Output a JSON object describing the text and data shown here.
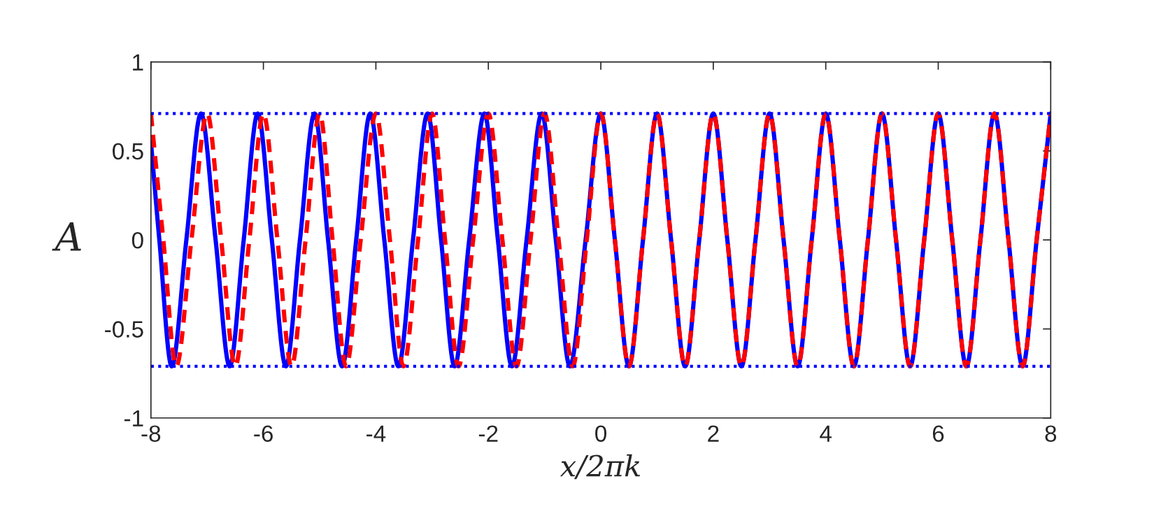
{
  "chart_data": {
    "type": "line",
    "xlabel": "x/2πk",
    "ylabel": "A",
    "xlim": [
      -8,
      8
    ],
    "xticks": [
      -8,
      -6,
      -4,
      -2,
      0,
      2,
      4,
      6,
      8
    ],
    "ylim": [
      -1,
      1
    ],
    "yticks": [
      -1,
      -0.5,
      0,
      0.5,
      1
    ],
    "grid": false,
    "legend": false,
    "marker": "none",
    "series": [
      {
        "color": "#0000ff",
        "line_style": "solid",
        "x": [
          -8,
          -7.85,
          -7.63,
          -7.37,
          -7.11,
          -6.85,
          -6.6,
          -6.35,
          -6.1,
          -5.85,
          -5.6,
          -5.35,
          -5.09,
          -4.85,
          -4.6,
          -4.35,
          -4.1,
          -3.85,
          -3.6,
          -3.34,
          -3.08,
          -2.84,
          -2.6,
          -2.34,
          -2.07,
          -1.83,
          -1.58,
          -1.32,
          -1.05,
          -0.8,
          -0.55,
          -0.27,
          0,
          0.25,
          0.5,
          0.75,
          1,
          1.25,
          1.5,
          1.75,
          2,
          2.25,
          2.5,
          2.75,
          3,
          3.25,
          3.5,
          3.75,
          4,
          4.25,
          4.5,
          4.75,
          5,
          5.25,
          5.5,
          5.75,
          6,
          6.25,
          6.5,
          6.75,
          7,
          7.25,
          7.5,
          7.75,
          8
        ],
        "values": [
          0.55,
          0,
          -0.71,
          0,
          0.71,
          0,
          -0.71,
          0,
          0.71,
          0,
          -0.71,
          0,
          0.71,
          0,
          -0.71,
          0,
          0.71,
          0,
          -0.71,
          0,
          0.71,
          0,
          -0.71,
          0,
          0.71,
          0,
          -0.71,
          0,
          0.71,
          0,
          -0.71,
          0,
          0.71,
          0,
          -0.71,
          0,
          0.71,
          0,
          -0.71,
          0,
          0.71,
          0,
          -0.71,
          0,
          0.71,
          0,
          -0.71,
          0,
          0.71,
          0,
          -0.71,
          0,
          0.71,
          0,
          -0.71,
          0,
          0.71,
          0,
          -0.71,
          0,
          0.71,
          0,
          -0.71,
          0,
          0.71
        ]
      },
      {
        "color": "#ff0000",
        "line_style": "dashed",
        "x": [
          -8,
          -7.78,
          -7.55,
          -7.28,
          -7,
          -6.75,
          -6.5,
          -6.25,
          -6,
          -5.75,
          -5.5,
          -5.25,
          -5,
          -4.77,
          -4.53,
          -4.27,
          -4,
          -3.75,
          -3.51,
          -3.25,
          -3,
          -2.77,
          -2.53,
          -2.27,
          -2,
          -1.75,
          -1.5,
          -1.25,
          -1,
          -0.75,
          -0.5,
          -0.25,
          0,
          0.25,
          0.5,
          0.75,
          1,
          1.25,
          1.5,
          1.75,
          2,
          2.25,
          2.5,
          2.75,
          3,
          3.25,
          3.5,
          3.75,
          4,
          4.25,
          4.5,
          4.75,
          5,
          5.25,
          5.5,
          5.75,
          6,
          6.25,
          6.5,
          6.75,
          7,
          7.25,
          7.5,
          7.75,
          8
        ],
        "values": [
          0.71,
          0,
          -0.71,
          0,
          0.71,
          0,
          -0.71,
          0,
          0.71,
          0,
          -0.71,
          0,
          0.71,
          0,
          -0.71,
          0,
          0.71,
          0,
          -0.71,
          0,
          0.71,
          0,
          -0.71,
          0,
          0.71,
          0,
          -0.71,
          0,
          0.71,
          0,
          -0.71,
          0,
          0.71,
          0,
          -0.71,
          0,
          0.71,
          0,
          -0.71,
          0,
          0.71,
          0,
          -0.71,
          0,
          0.71,
          0,
          -0.71,
          0,
          0.71,
          0,
          -0.71,
          0,
          0.71,
          0,
          -0.71,
          0,
          0.71,
          0,
          -0.71,
          0,
          0.71,
          0,
          -0.71,
          0,
          0.71
        ]
      }
    ],
    "ref_lines": [
      {
        "axis": "y",
        "value": 0.71,
        "color": "#0000ff",
        "line_style": "dotted"
      },
      {
        "axis": "y",
        "value": -0.71,
        "color": "#0000ff",
        "line_style": "dotted"
      }
    ]
  }
}
